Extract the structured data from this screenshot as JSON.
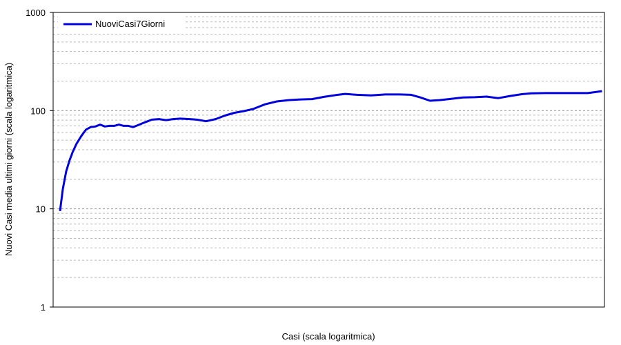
{
  "chart_data": {
    "type": "line",
    "title": "",
    "xlabel": "Casi (scala logaritmica)",
    "ylabel": "Nuovi Casi media ultimi giorni (scala logaritmica)",
    "y_scale": "log",
    "x_scale": "log",
    "ylim": [
      1,
      1000
    ],
    "y_ticks": [
      1,
      10,
      100,
      1000
    ],
    "y_tick_labels": [
      "1",
      "10",
      "100",
      "1000"
    ],
    "grid": "horizontal-minor",
    "legend_position": "top-left",
    "series": [
      {
        "name": "NuoviCasi7Giorni",
        "color": "#0000dd",
        "points_xfrac_y": [
          [
            0.0,
            9.5
          ],
          [
            0.006,
            16
          ],
          [
            0.013,
            24
          ],
          [
            0.02,
            31
          ],
          [
            0.027,
            38
          ],
          [
            0.035,
            46
          ],
          [
            0.045,
            55
          ],
          [
            0.055,
            64
          ],
          [
            0.065,
            68
          ],
          [
            0.075,
            69
          ],
          [
            0.085,
            72
          ],
          [
            0.095,
            69
          ],
          [
            0.105,
            70
          ],
          [
            0.115,
            70
          ],
          [
            0.125,
            72
          ],
          [
            0.135,
            70
          ],
          [
            0.145,
            70
          ],
          [
            0.155,
            68
          ],
          [
            0.165,
            71
          ],
          [
            0.18,
            76
          ],
          [
            0.195,
            81
          ],
          [
            0.21,
            82
          ],
          [
            0.225,
            80
          ],
          [
            0.24,
            82
          ],
          [
            0.255,
            83
          ],
          [
            0.275,
            82
          ],
          [
            0.29,
            81
          ],
          [
            0.31,
            78
          ],
          [
            0.33,
            82
          ],
          [
            0.35,
            89
          ],
          [
            0.37,
            95
          ],
          [
            0.39,
            99
          ],
          [
            0.41,
            104
          ],
          [
            0.435,
            116
          ],
          [
            0.46,
            124
          ],
          [
            0.485,
            128
          ],
          [
            0.51,
            130
          ],
          [
            0.535,
            131
          ],
          [
            0.56,
            138
          ],
          [
            0.585,
            144
          ],
          [
            0.605,
            148
          ],
          [
            0.63,
            145
          ],
          [
            0.66,
            143
          ],
          [
            0.69,
            146
          ],
          [
            0.72,
            146
          ],
          [
            0.745,
            145
          ],
          [
            0.765,
            136
          ],
          [
            0.785,
            126
          ],
          [
            0.805,
            128
          ],
          [
            0.83,
            132
          ],
          [
            0.855,
            136
          ],
          [
            0.88,
            137
          ],
          [
            0.905,
            139
          ],
          [
            0.93,
            134
          ],
          [
            0.955,
            141
          ],
          [
            0.98,
            147
          ],
          [
            1.0,
            150
          ],
          [
            1.03,
            151
          ],
          [
            1.06,
            151
          ],
          [
            1.09,
            151
          ],
          [
            1.12,
            151
          ],
          [
            1.15,
            158
          ]
        ]
      }
    ]
  }
}
